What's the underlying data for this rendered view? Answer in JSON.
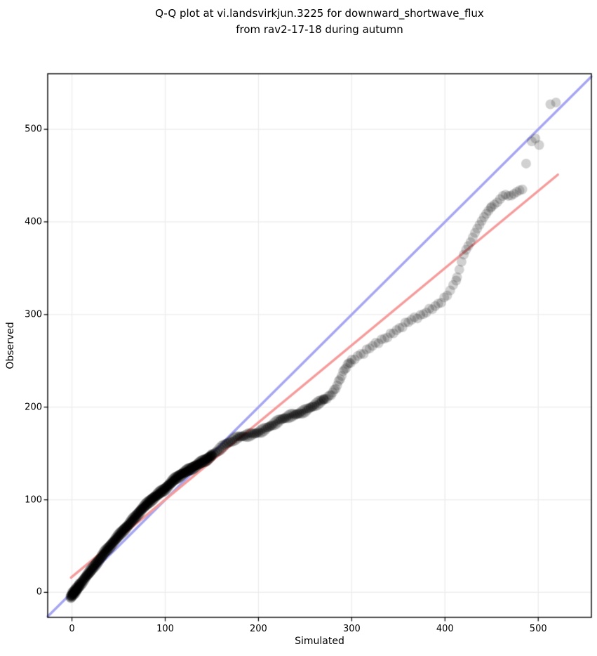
{
  "figure": {
    "title_line1": "Q-Q plot at vi.landsvirkjun.3225 for downward_shortwave_flux",
    "title_line2": "from rav2-17-18 during autumn"
  },
  "chart_data": {
    "type": "scatter",
    "subtype": "qq-plot",
    "title": "Q-Q plot at vi.landsvirkjun.3225 for downward_shortwave_flux from rav2-17-18 during autumn",
    "xlabel": "Simulated",
    "ylabel": "Observed",
    "xlim": [
      -26,
      557
    ],
    "ylim": [
      -27,
      560
    ],
    "x_ticks": [
      0,
      100,
      200,
      300,
      400,
      500
    ],
    "y_ticks": [
      0,
      100,
      200,
      300,
      400,
      500
    ],
    "x_tick_labels": [
      "0",
      "100",
      "200",
      "300",
      "400",
      "500"
    ],
    "y_tick_labels": [
      "0",
      "100",
      "200",
      "300",
      "400",
      "500"
    ],
    "grid": true,
    "legend": false,
    "colors": {
      "background": "#ffffff",
      "grid": "#ececec",
      "spine": "#000000",
      "marker": "#000000",
      "identity_line": "#a6a6f2",
      "fit_line": "#f59c9c"
    },
    "lines": [
      {
        "name": "identity",
        "desc": "y = x reference line",
        "x0": -26,
        "y0": -26,
        "x1": 557,
        "y1": 557,
        "color": "#a6a6f2",
        "width": 3.5
      },
      {
        "name": "fit",
        "desc": "robust fit of observed vs simulated quantiles",
        "x0": -1,
        "y0": 16,
        "x1": 521,
        "y1": 451,
        "color": "#f59c9c",
        "width": 3.5
      }
    ],
    "scatter": {
      "marker_diameter_px": 14,
      "alpha": 0.18,
      "color": "#000000",
      "cluster_points": [
        [
          -2,
          -5
        ],
        [
          -1,
          -6
        ],
        [
          -1,
          -3
        ],
        [
          0,
          -5
        ],
        [
          0,
          -2
        ],
        [
          0,
          0
        ],
        [
          1,
          -4
        ],
        [
          1,
          -1
        ],
        [
          1,
          1
        ],
        [
          2,
          -3
        ],
        [
          2,
          0
        ],
        [
          2,
          2
        ],
        [
          3,
          -2
        ],
        [
          3,
          1
        ],
        [
          3,
          3
        ],
        [
          4,
          -1
        ],
        [
          4,
          2
        ],
        [
          4,
          5
        ],
        [
          5,
          1
        ],
        [
          5,
          4
        ],
        [
          6,
          3
        ],
        [
          6,
          6
        ],
        [
          7,
          5
        ],
        [
          7,
          8
        ],
        [
          8,
          7
        ],
        [
          8,
          10
        ]
      ],
      "backbone": [
        [
          -2,
          -6
        ],
        [
          0,
          -3
        ],
        [
          5,
          3
        ],
        [
          10,
          10
        ],
        [
          15,
          17
        ],
        [
          20,
          23
        ],
        [
          25,
          30
        ],
        [
          30,
          36
        ],
        [
          35,
          43
        ],
        [
          40,
          49
        ],
        [
          45,
          55
        ],
        [
          50,
          61
        ],
        [
          55,
          67
        ],
        [
          60,
          72
        ],
        [
          65,
          78
        ],
        [
          70,
          84
        ],
        [
          75,
          90
        ],
        [
          80,
          95
        ],
        [
          85,
          100
        ],
        [
          90,
          104
        ],
        [
          95,
          108
        ],
        [
          100,
          112
        ],
        [
          105,
          117
        ],
        [
          110,
          122
        ],
        [
          115,
          126
        ],
        [
          120,
          129
        ],
        [
          125,
          132
        ],
        [
          130,
          135
        ],
        [
          135,
          138
        ],
        [
          140,
          141
        ],
        [
          145,
          144
        ],
        [
          150,
          148
        ],
        [
          155,
          152
        ],
        [
          160,
          156
        ],
        [
          165,
          160
        ],
        [
          170,
          163
        ],
        [
          175,
          166
        ],
        [
          180,
          168
        ],
        [
          185,
          169
        ],
        [
          190,
          170
        ],
        [
          195,
          171
        ],
        [
          200,
          173
        ],
        [
          205,
          175
        ],
        [
          210,
          178
        ],
        [
          215,
          181
        ],
        [
          220,
          184
        ],
        [
          225,
          187
        ],
        [
          230,
          189
        ],
        [
          235,
          191
        ],
        [
          240,
          192
        ],
        [
          245,
          194
        ],
        [
          250,
          196
        ],
        [
          255,
          199
        ],
        [
          260,
          202
        ],
        [
          265,
          205
        ],
        [
          270,
          208
        ],
        [
          275,
          211
        ],
        [
          280,
          216
        ],
        [
          283,
          221
        ],
        [
          286,
          227
        ],
        [
          289,
          234
        ],
        [
          292,
          240
        ],
        [
          295,
          245
        ],
        [
          298,
          248
        ],
        [
          301,
          251
        ],
        [
          305,
          254
        ],
        [
          310,
          257
        ],
        [
          315,
          260
        ],
        [
          320,
          265
        ],
        [
          325,
          268
        ],
        [
          330,
          271
        ],
        [
          335,
          274
        ],
        [
          340,
          277
        ],
        [
          345,
          281
        ],
        [
          350,
          284
        ],
        [
          355,
          288
        ],
        [
          360,
          292
        ],
        [
          365,
          295
        ],
        [
          370,
          297
        ],
        [
          375,
          299
        ],
        [
          380,
          303
        ],
        [
          385,
          306
        ],
        [
          390,
          309
        ],
        [
          395,
          313
        ],
        [
          400,
          318
        ],
        [
          403,
          322
        ],
        [
          406,
          327
        ],
        [
          409,
          331
        ],
        [
          411,
          335
        ],
        [
          413,
          341
        ],
        [
          415,
          348
        ],
        [
          417,
          355
        ],
        [
          419,
          362
        ],
        [
          421,
          368
        ],
        [
          424,
          373
        ],
        [
          427,
          378
        ],
        [
          430,
          384
        ],
        [
          433,
          390
        ],
        [
          436,
          395
        ],
        [
          439,
          400
        ],
        [
          442,
          405
        ],
        [
          445,
          409
        ],
        [
          448,
          413
        ],
        [
          451,
          417
        ],
        [
          454,
          420
        ],
        [
          457,
          423
        ],
        [
          460,
          426
        ],
        [
          463,
          428
        ],
        [
          466,
          429
        ],
        [
          469,
          428
        ],
        [
          472,
          430
        ],
        [
          475,
          431
        ],
        [
          478,
          432
        ],
        [
          481,
          434
        ],
        [
          484,
          436
        ]
      ],
      "density_segments": [
        {
          "x0": -1,
          "x1": 150,
          "step": 1.0,
          "rows": [
            -1.4,
            0,
            1.4
          ],
          "jitter": 0.9
        },
        {
          "x0": 150,
          "x1": 270,
          "step": 2.0,
          "rows": [
            -1,
            1
          ],
          "jitter": 1.1
        },
        {
          "x0": 270,
          "x1": 299,
          "step": 1.6,
          "rows": [
            0
          ],
          "jitter": 1.2
        },
        {
          "x0": 300,
          "x1": 412,
          "step": 3.2,
          "rows": [
            0
          ],
          "jitter": 1.4
        },
        {
          "x0": 413,
          "x1": 449,
          "step": 2.4,
          "rows": [
            0
          ],
          "jitter": 0.9
        },
        {
          "x0": 450,
          "x1": 484,
          "step": 3.0,
          "rows": [
            0
          ],
          "jitter": 0.9
        }
      ],
      "tail_points": [
        [
          487,
          463
        ],
        [
          493,
          487
        ],
        [
          497,
          490
        ],
        [
          501,
          483
        ],
        [
          513,
          527
        ],
        [
          519,
          529
        ]
      ]
    }
  }
}
